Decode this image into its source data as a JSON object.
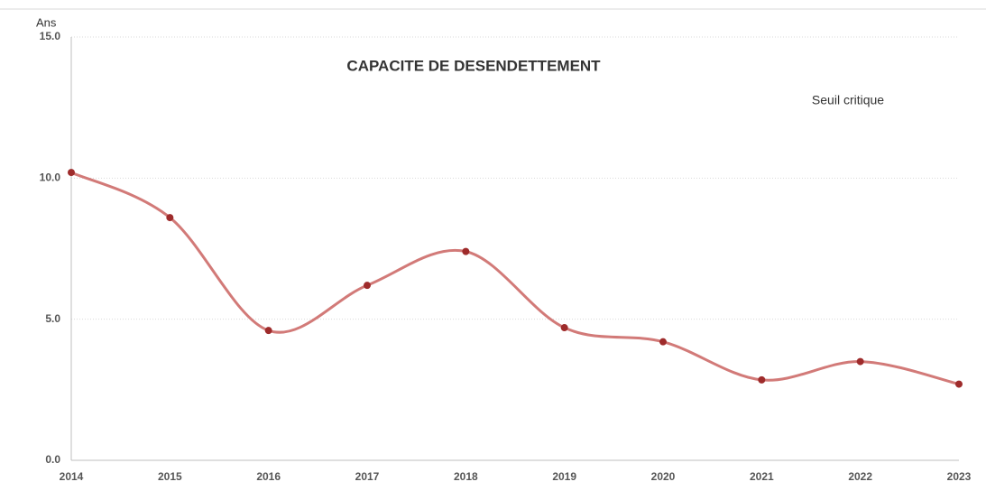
{
  "chart_data": {
    "type": "line",
    "title": "CAPACITE DE DESENDETTEMENT",
    "y_label": "Ans",
    "annotation": "Seuil critique",
    "categories": [
      "2014",
      "2015",
      "2016",
      "2017",
      "2018",
      "2019",
      "2020",
      "2021",
      "2022",
      "2023"
    ],
    "series": [
      {
        "name": "Capacite de desendettement",
        "color": "#d27a78",
        "marker_color": "#9e2b2b",
        "values": [
          10.2,
          8.6,
          4.6,
          6.2,
          7.4,
          4.7,
          4.2,
          2.85,
          3.5,
          2.7
        ]
      }
    ],
    "ylim": [
      0,
      15
    ],
    "yticks": [
      {
        "value": 0,
        "label": "0.0"
      },
      {
        "value": 5,
        "label": "5.0"
      },
      {
        "value": 10,
        "label": "10.0"
      },
      {
        "value": 15,
        "label": "15.0"
      }
    ],
    "grid": true,
    "smooth": true
  }
}
